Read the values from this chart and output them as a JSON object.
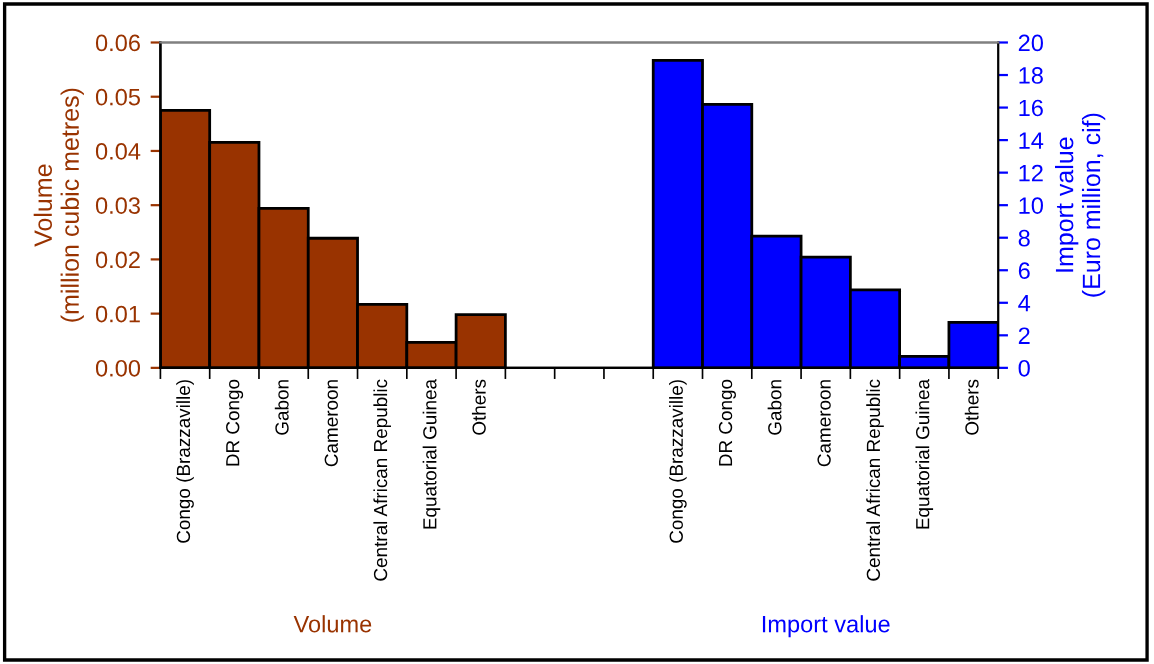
{
  "chart_data": {
    "type": "bar",
    "categories": [
      "Congo (Brazzaville)",
      "DR Congo",
      "Gabon",
      "Cameroon",
      "Central African Republic",
      "Equatorial Guinea",
      "Others",
      null,
      null,
      null,
      "Congo (Brazzaville)",
      "DR Congo",
      "Gabon",
      "Cameroon",
      "Central African Republic",
      "Equatorial Guinea",
      "Others"
    ],
    "series": [
      {
        "name": "Volume",
        "color": "#993300",
        "values": [
          0.0475,
          0.0416,
          0.0294,
          0.0239,
          0.0117,
          0.0047,
          0.0098,
          null,
          null,
          null,
          null,
          null,
          null,
          null,
          null,
          null,
          null
        ]
      },
      {
        "name": "Import value",
        "color": "#0000ff",
        "axis": "y2",
        "values": [
          null,
          null,
          null,
          null,
          null,
          null,
          null,
          null,
          null,
          null,
          18.9,
          16.2,
          8.1,
          6.8,
          4.8,
          0.7,
          2.8
        ]
      }
    ],
    "ylabel": "Volume\n(million cubic metres)",
    "y2label": "Import value\n(Euro million, cif)",
    "ylim": [
      0,
      0.06
    ],
    "yticks": [
      {
        "value": 0,
        "label": "0.00"
      },
      {
        "value": 0.01,
        "label": "0.01"
      },
      {
        "value": 0.02,
        "label": "0.02"
      },
      {
        "value": 0.03,
        "label": "0.03"
      },
      {
        "value": 0.04,
        "label": "0.04"
      },
      {
        "value": 0.05,
        "label": "0.05"
      },
      {
        "value": 0.06,
        "label": "0.06"
      }
    ],
    "y2lim": [
      0,
      20
    ],
    "y2ticks": [
      0,
      2,
      4,
      6,
      8,
      10,
      12,
      14,
      16,
      18,
      20
    ],
    "grid": false,
    "legend": false
  }
}
